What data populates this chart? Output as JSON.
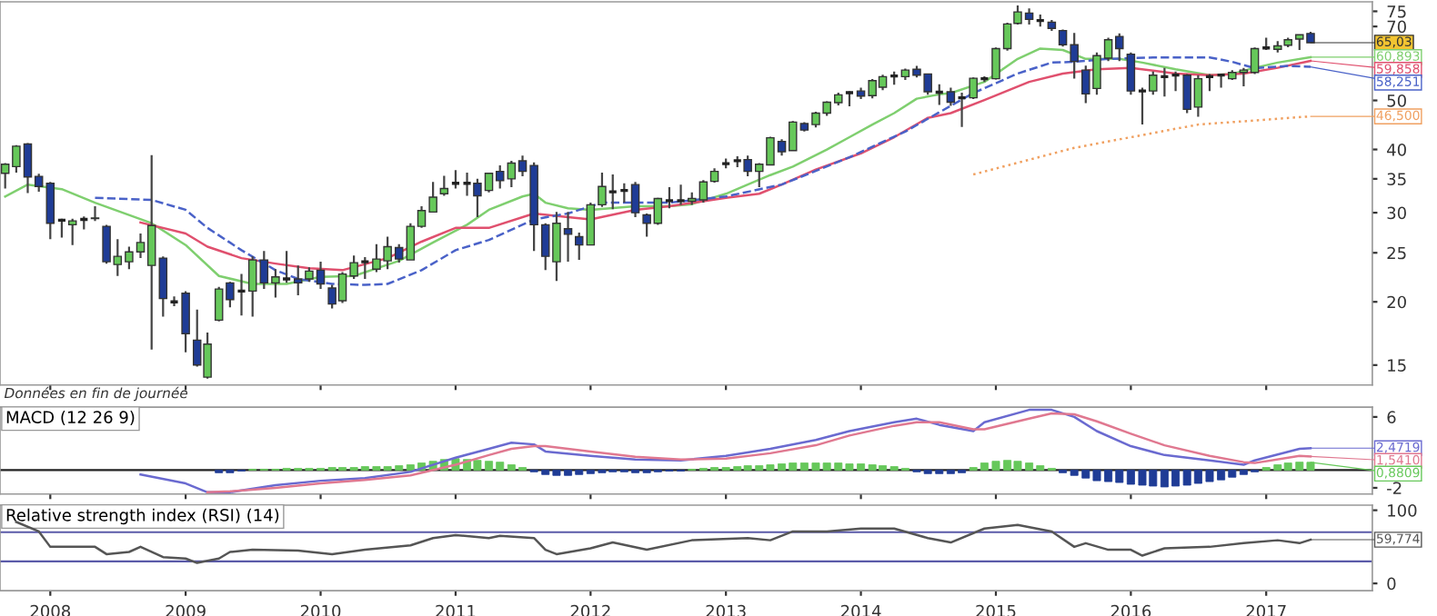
{
  "chart_data": [
    {
      "type": "candlestick",
      "log": true,
      "tick_labels": "y",
      "xlim": [
        "2007-08-18",
        "2017-10-15"
      ],
      "xticks": [
        "2008",
        "2009",
        "2010",
        "2011",
        "2012",
        "2013",
        "2014",
        "2015",
        "2016",
        "2017"
      ],
      "ylim": [
        13.7,
        78.3
      ],
      "yticks": [
        15,
        20,
        25,
        30,
        35,
        40,
        50,
        70,
        75
      ],
      "x": [
        "2007-09",
        "2007-10",
        "2007-11",
        "2007-12",
        "2008-01",
        "2008-02",
        "2008-03",
        "2008-04",
        "2008-05",
        "2008-06",
        "2008-07",
        "2008-08",
        "2008-09",
        "2008-10",
        "2008-11",
        "2008-12",
        "2009-01",
        "2009-02",
        "2009-03",
        "2009-04",
        "2009-05",
        "2009-06",
        "2009-07",
        "2009-08",
        "2009-09",
        "2009-10",
        "2009-11",
        "2009-12",
        "2010-01",
        "2010-02",
        "2010-03",
        "2010-04",
        "2010-05",
        "2010-06",
        "2010-07",
        "2010-08",
        "2010-09",
        "2010-10",
        "2010-11",
        "2010-12",
        "2011-01",
        "2011-02",
        "2011-03",
        "2011-04",
        "2011-05",
        "2011-06",
        "2011-07",
        "2011-08",
        "2011-09",
        "2011-10",
        "2011-11",
        "2011-12",
        "2012-01",
        "2012-02",
        "2012-03",
        "2012-04",
        "2012-05",
        "2012-06",
        "2012-07",
        "2012-08",
        "2012-09",
        "2012-10",
        "2012-11",
        "2012-12",
        "2013-01",
        "2013-02",
        "2013-03",
        "2013-04",
        "2013-05",
        "2013-06",
        "2013-07",
        "2013-08",
        "2013-09",
        "2013-10",
        "2013-11",
        "2013-12",
        "2014-01",
        "2014-02",
        "2014-03",
        "2014-04",
        "2014-05",
        "2014-06",
        "2014-07",
        "2014-08",
        "2014-09",
        "2014-10",
        "2014-11",
        "2014-12",
        "2015-01",
        "2015-02",
        "2015-03",
        "2015-04",
        "2015-05",
        "2015-06",
        "2015-07",
        "2015-08",
        "2015-09",
        "2015-10",
        "2015-11",
        "2015-12",
        "2016-01",
        "2016-02",
        "2016-03",
        "2016-04",
        "2016-05",
        "2016-06",
        "2016-07",
        "2016-08",
        "2016-09",
        "2016-10",
        "2016-11",
        "2016-12",
        "2017-01",
        "2017-02",
        "2017-03",
        "2017-04",
        "2017-05"
      ],
      "ohlc": [
        [
          35.9,
          37.6,
          33.5,
          37.4
        ],
        [
          37.0,
          40.8,
          36.0,
          40.6
        ],
        [
          41.0,
          41.2,
          32.8,
          35.3
        ],
        [
          35.4,
          35.8,
          33.0,
          33.8
        ],
        [
          34.3,
          34.5,
          26.6,
          28.6
        ],
        [
          29.0,
          29.2,
          26.8,
          29.0
        ],
        [
          28.4,
          29.2,
          25.9,
          28.9
        ],
        [
          29.1,
          29.5,
          27.8,
          29.1
        ],
        [
          29.2,
          30.9,
          28.9,
          29.3
        ],
        [
          28.2,
          28.4,
          23.8,
          24.0
        ],
        [
          23.7,
          26.6,
          22.5,
          24.6
        ],
        [
          24.0,
          25.7,
          23.2,
          25.1
        ],
        [
          25.1,
          27.3,
          24.4,
          26.2
        ],
        [
          23.6,
          39.0,
          16.1,
          28.3
        ],
        [
          24.4,
          24.6,
          18.7,
          20.3
        ],
        [
          20.0,
          20.5,
          19.6,
          20.0
        ],
        [
          20.8,
          21.0,
          15.9,
          17.3
        ],
        [
          16.8,
          19.3,
          14.9,
          15.0
        ],
        [
          14.2,
          17.4,
          14.1,
          16.5
        ],
        [
          18.4,
          21.4,
          18.3,
          21.2
        ],
        [
          21.8,
          21.9,
          19.5,
          20.2
        ],
        [
          21.0,
          22.7,
          18.8,
          21.0
        ],
        [
          21.0,
          24.6,
          18.7,
          24.2
        ],
        [
          24.2,
          25.2,
          21.2,
          21.8
        ],
        [
          21.8,
          23.2,
          20.4,
          22.4
        ],
        [
          22.2,
          25.2,
          21.8,
          22.2
        ],
        [
          22.2,
          23.6,
          20.6,
          21.8
        ],
        [
          22.2,
          23.4,
          21.9,
          23.0
        ],
        [
          23.1,
          24.0,
          21.2,
          21.7
        ],
        [
          21.3,
          21.6,
          19.4,
          19.8
        ],
        [
          20.1,
          22.9,
          19.9,
          22.7
        ],
        [
          22.5,
          24.7,
          22.2,
          23.9
        ],
        [
          24.0,
          24.5,
          22.2,
          24.0
        ],
        [
          23.2,
          26.0,
          22.9,
          24.3
        ],
        [
          24.1,
          26.9,
          23.2,
          25.7
        ],
        [
          25.6,
          26.0,
          23.9,
          24.3
        ],
        [
          24.2,
          28.6,
          24.2,
          28.2
        ],
        [
          28.2,
          30.9,
          28.0,
          30.3
        ],
        [
          30.1,
          34.5,
          30.1,
          32.2
        ],
        [
          32.7,
          35.5,
          32.4,
          33.5
        ],
        [
          34.3,
          36.4,
          33.5,
          34.3
        ],
        [
          34.3,
          36.0,
          32.4,
          34.3
        ],
        [
          34.3,
          35.0,
          29.4,
          32.4
        ],
        [
          33.2,
          36.0,
          32.9,
          35.9
        ],
        [
          36.2,
          37.2,
          33.5,
          34.7
        ],
        [
          35.0,
          38.0,
          33.7,
          37.6
        ],
        [
          38.0,
          38.9,
          35.4,
          36.2
        ],
        [
          37.2,
          37.7,
          25.2,
          28.4
        ],
        [
          28.4,
          28.6,
          23.1,
          24.6
        ],
        [
          24.0,
          30.1,
          22.0,
          28.6
        ],
        [
          27.9,
          30.1,
          24.0,
          27.2
        ],
        [
          26.9,
          27.4,
          24.2,
          25.9
        ],
        [
          25.9,
          31.4,
          25.9,
          31.1
        ],
        [
          31.1,
          36.0,
          30.8,
          33.8
        ],
        [
          33.0,
          35.7,
          30.5,
          33.0
        ],
        [
          33.2,
          34.3,
          31.4,
          33.2
        ],
        [
          34.1,
          34.5,
          29.4,
          30.0
        ],
        [
          29.7,
          29.9,
          26.9,
          28.6
        ],
        [
          28.6,
          32.1,
          28.4,
          32.0
        ],
        [
          31.7,
          33.7,
          30.6,
          31.7
        ],
        [
          31.7,
          34.1,
          31.1,
          31.7
        ],
        [
          31.6,
          32.9,
          31.1,
          32.0
        ],
        [
          31.8,
          34.8,
          31.4,
          34.5
        ],
        [
          34.6,
          36.7,
          34.4,
          36.2
        ],
        [
          37.5,
          38.4,
          36.7,
          37.5
        ],
        [
          38.0,
          38.8,
          36.9,
          38.0
        ],
        [
          38.2,
          38.9,
          35.4,
          36.2
        ],
        [
          36.2,
          37.6,
          33.7,
          37.4
        ],
        [
          37.3,
          42.4,
          37.3,
          42.2
        ],
        [
          41.5,
          41.9,
          38.9,
          39.6
        ],
        [
          39.8,
          45.5,
          39.8,
          45.3
        ],
        [
          45.0,
          45.3,
          43.4,
          43.7
        ],
        [
          44.8,
          47.5,
          44.2,
          47.2
        ],
        [
          47.2,
          49.8,
          46.6,
          49.6
        ],
        [
          49.5,
          51.8,
          48.9,
          51.3
        ],
        [
          51.8,
          52.1,
          48.7,
          51.8
        ],
        [
          52.2,
          53.0,
          50.3,
          51.0
        ],
        [
          51.1,
          55.1,
          50.5,
          54.7
        ],
        [
          53.1,
          56.2,
          52.4,
          55.7
        ],
        [
          55.9,
          57.0,
          53.7,
          55.9
        ],
        [
          55.7,
          57.8,
          54.9,
          57.4
        ],
        [
          57.6,
          58.5,
          55.5,
          56.1
        ],
        [
          56.4,
          56.4,
          51.3,
          52.0
        ],
        [
          51.9,
          53.8,
          49.0,
          51.9
        ],
        [
          52.0,
          53.0,
          48.8,
          49.6
        ],
        [
          50.6,
          51.8,
          44.3,
          50.6
        ],
        [
          50.6,
          55.5,
          50.3,
          55.3
        ],
        [
          55.2,
          55.8,
          54.4,
          55.2
        ],
        [
          55.2,
          63.6,
          55.0,
          63.3
        ],
        [
          63.3,
          71.2,
          62.7,
          70.8
        ],
        [
          71.0,
          77.0,
          70.6,
          74.8
        ],
        [
          74.4,
          76.0,
          70.6,
          72.3
        ],
        [
          71.9,
          73.9,
          70.0,
          71.9
        ],
        [
          71.4,
          72.1,
          68.6,
          69.4
        ],
        [
          68.7,
          69.0,
          63.9,
          64.4
        ],
        [
          64.4,
          68.0,
          55.2,
          59.7
        ],
        [
          57.4,
          58.6,
          49.4,
          51.5
        ],
        [
          52.8,
          62.2,
          51.3,
          61.3
        ],
        [
          60.6,
          66.5,
          59.8,
          65.9
        ],
        [
          66.9,
          67.8,
          59.8,
          63.3
        ],
        [
          61.7,
          62.2,
          51.3,
          52.2
        ],
        [
          52.2,
          53.0,
          44.8,
          52.2
        ],
        [
          52.2,
          57.0,
          51.3,
          56.1
        ],
        [
          55.7,
          58.0,
          50.9,
          55.7
        ],
        [
          56.1,
          57.0,
          52.2,
          56.1
        ],
        [
          56.1,
          56.4,
          47.2,
          48.0
        ],
        [
          48.5,
          56.1,
          46.4,
          55.2
        ],
        [
          55.7,
          56.4,
          52.2,
          55.7
        ],
        [
          56.1,
          56.4,
          53.0,
          56.1
        ],
        [
          55.2,
          57.4,
          54.9,
          56.8
        ],
        [
          56.8,
          58.0,
          53.3,
          57.4
        ],
        [
          56.8,
          63.6,
          56.4,
          63.3
        ],
        [
          63.5,
          66.5,
          62.9,
          63.5
        ],
        [
          63.1,
          65.5,
          62.2,
          64.1
        ],
        [
          64.3,
          66.5,
          63.7,
          65.9
        ],
        [
          66.1,
          67.4,
          62.9,
          67.4
        ],
        [
          67.8,
          68.3,
          65.0,
          65.03
        ]
      ],
      "series": [
        {
          "type": "line",
          "color": "#7fcf6f",
          "line_style": "solid",
          "x": [
            "2007-09",
            "2007-11",
            "2008-02",
            "2008-05",
            "2008-10",
            "2009-01",
            "2009-04",
            "2009-07",
            "2009-10",
            "2010-01",
            "2010-04",
            "2010-08",
            "2010-11",
            "2011-02",
            "2011-04",
            "2011-07",
            "2011-08",
            "2011-09",
            "2011-11",
            "2012-01",
            "2012-05",
            "2012-08",
            "2012-10",
            "2013-01",
            "2013-03",
            "2013-05",
            "2013-07",
            "2013-10",
            "2013-12",
            "2014-02",
            "2014-04",
            "2014-06",
            "2014-08",
            "2014-09",
            "2014-12",
            "2015-03",
            "2015-05",
            "2015-07",
            "2015-09",
            "2015-12",
            "2016-02",
            "2016-05",
            "2016-08",
            "2016-10",
            "2016-12",
            "2017-02",
            "2017-05"
          ],
          "values": [
            32.3,
            34.1,
            33.4,
            31.4,
            28.6,
            25.9,
            22.5,
            21.7,
            21.7,
            22.4,
            22.5,
            24.1,
            26.2,
            28.4,
            30.4,
            32.3,
            32.7,
            31.4,
            30.6,
            30.4,
            30.9,
            30.9,
            31.2,
            32.7,
            34.1,
            35.6,
            37.0,
            40.0,
            42.3,
            44.8,
            47.2,
            50.4,
            51.4,
            51.7,
            54.4,
            60.4,
            63.3,
            62.9,
            60.4,
            60.4,
            59.4,
            57.6,
            56.1,
            56.4,
            58.0,
            59.4,
            60.893
          ]
        },
        {
          "type": "line",
          "color": "#e0506e",
          "line_style": "solid",
          "x": [
            "2008-09",
            "2009-01",
            "2009-03",
            "2009-06",
            "2009-09",
            "2009-12",
            "2010-03",
            "2010-07",
            "2010-10",
            "2011-01",
            "2011-04",
            "2011-08",
            "2011-11",
            "2012-01",
            "2012-05",
            "2012-08",
            "2013-01",
            "2013-04",
            "2013-06",
            "2013-09",
            "2014-01",
            "2014-04",
            "2014-07",
            "2014-09",
            "2014-12",
            "2015-04",
            "2015-07",
            "2015-10",
            "2016-01",
            "2016-05",
            "2016-08",
            "2016-11",
            "2017-02",
            "2017-05"
          ],
          "values": [
            28.7,
            27.3,
            25.7,
            24.4,
            23.8,
            23.3,
            23.1,
            24.4,
            26.3,
            28.0,
            28.0,
            29.9,
            29.4,
            29.1,
            30.4,
            30.9,
            32.1,
            32.7,
            34.1,
            36.5,
            39.3,
            42.3,
            46.2,
            47.2,
            50.1,
            54.4,
            56.5,
            57.6,
            58.0,
            56.5,
            56.1,
            56.5,
            58.0,
            59.858
          ]
        },
        {
          "type": "line",
          "color": "#4a62c8",
          "line_style": "dashed",
          "x": [
            "2008-05",
            "2008-10",
            "2009-01",
            "2009-03",
            "2009-06",
            "2009-09",
            "2009-11",
            "2010-02",
            "2010-05",
            "2010-07",
            "2010-10",
            "2011-01",
            "2011-04",
            "2011-08",
            "2011-11",
            "2012-02",
            "2012-08",
            "2013-01",
            "2013-06",
            "2013-12",
            "2014-05",
            "2014-11",
            "2015-03",
            "2015-06",
            "2015-08",
            "2015-11",
            "2016-03",
            "2016-08",
            "2016-10",
            "2016-12",
            "2017-03",
            "2017-05"
          ],
          "values": [
            32.1,
            31.8,
            30.4,
            28.0,
            25.3,
            23.1,
            22.2,
            21.7,
            21.6,
            21.7,
            23.1,
            25.3,
            26.5,
            29.1,
            29.9,
            31.4,
            31.4,
            32.3,
            34.1,
            38.6,
            43.4,
            51.7,
            56.5,
            59.4,
            59.6,
            60.4,
            60.8,
            60.8,
            59.6,
            57.9,
            58.5,
            58.251
          ]
        },
        {
          "type": "line",
          "color": "#f0a060",
          "line_style": "dotted",
          "x": [
            "2014-11",
            "2015-08",
            "2016-07",
            "2017-05"
          ],
          "values": [
            35.7,
            40.3,
            44.8,
            46.5
          ]
        }
      ],
      "annotations": [
        {
          "text": "65,03",
          "x": "2017-05",
          "y": 65.03
        },
        {
          "text": "60,893",
          "x": "2017-05",
          "y": 60.893
        },
        {
          "text": "59,858",
          "x": "2017-05",
          "y": 59.858
        },
        {
          "text": "58,251",
          "x": "2017-05",
          "y": 58.251
        },
        {
          "text": "46,500",
          "x": "2017-05",
          "y": 46.5
        },
        "Données en fin de journée"
      ]
    },
    {
      "type": "bar",
      "title": "MACD (12 26 9)",
      "tick_labels": "y",
      "xlim": [
        "2007-08-18",
        "2017-10-15"
      ],
      "xticks": [
        "2008",
        "2009",
        "2010",
        "2011",
        "2012",
        "2013",
        "2014",
        "2015",
        "2016",
        "2017"
      ],
      "ylim": [
        -2.7,
        7.1
      ],
      "yticks": [
        -2,
        6
      ],
      "x": [
        "2009-04",
        "2009-05",
        "2009-06",
        "2009-07",
        "2009-08",
        "2009-09",
        "2009-10",
        "2009-11",
        "2009-12",
        "2010-01",
        "2010-02",
        "2010-03",
        "2010-04",
        "2010-05",
        "2010-06",
        "2010-07",
        "2010-08",
        "2010-09",
        "2010-10",
        "2010-11",
        "2010-12",
        "2011-01",
        "2011-02",
        "2011-03",
        "2011-04",
        "2011-05",
        "2011-06",
        "2011-07",
        "2011-08",
        "2011-09",
        "2011-10",
        "2011-11",
        "2011-12",
        "2012-01",
        "2012-02",
        "2012-03",
        "2012-04",
        "2012-05",
        "2012-06",
        "2012-07",
        "2012-08",
        "2012-09",
        "2012-10",
        "2012-11",
        "2012-12",
        "2013-01",
        "2013-02",
        "2013-03",
        "2013-04",
        "2013-05",
        "2013-06",
        "2013-07",
        "2013-08",
        "2013-09",
        "2013-10",
        "2013-11",
        "2013-12",
        "2014-01",
        "2014-02",
        "2014-03",
        "2014-04",
        "2014-05",
        "2014-06",
        "2014-07",
        "2014-08",
        "2014-09",
        "2014-10",
        "2014-11",
        "2014-12",
        "2015-01",
        "2015-02",
        "2015-03",
        "2015-04",
        "2015-05",
        "2015-06",
        "2015-07",
        "2015-08",
        "2015-09",
        "2015-10",
        "2015-11",
        "2015-12",
        "2016-01",
        "2016-02",
        "2016-03",
        "2016-04",
        "2016-05",
        "2016-06",
        "2016-07",
        "2016-08",
        "2016-09",
        "2016-10",
        "2016-11",
        "2016-12",
        "2017-01",
        "2017-02",
        "2017-03",
        "2017-04",
        "2017-05"
      ],
      "series": [
        {
          "type": "bar",
          "color": "#66c85a",
          "values": [
            null,
            null,
            null,
            0.1,
            0.1,
            0.1,
            0.2,
            0.2,
            0.2,
            0.2,
            0.3,
            0.3,
            0.3,
            0.4,
            0.4,
            0.4,
            0.5,
            0.6,
            0.8,
            1.0,
            1.2,
            1.3,
            1.2,
            1.1,
            1.0,
            0.9,
            0.6,
            0.3,
            null,
            null,
            null,
            null,
            null,
            null,
            null,
            null,
            null,
            null,
            null,
            null,
            null,
            null,
            0.1,
            0.2,
            0.3,
            0.3,
            0.4,
            0.5,
            0.5,
            0.6,
            0.7,
            0.8,
            0.8,
            0.8,
            0.8,
            0.8,
            0.7,
            0.7,
            0.6,
            0.5,
            0.4,
            0.2,
            null,
            null,
            null,
            null,
            null,
            0.3,
            0.8,
            1.0,
            1.1,
            1.0,
            0.8,
            0.5,
            0.2,
            null,
            null,
            null,
            null,
            null,
            null,
            null,
            null,
            null,
            null,
            null,
            null,
            null,
            null,
            null,
            null,
            null,
            null,
            0.3,
            0.6,
            0.8,
            0.9,
            0.8809
          ]
        },
        {
          "type": "bar",
          "color": "#1f3c96",
          "values": [
            -0.3,
            -0.3,
            -0.1,
            null,
            null,
            null,
            null,
            null,
            null,
            null,
            null,
            null,
            null,
            null,
            null,
            null,
            null,
            null,
            null,
            null,
            null,
            null,
            null,
            null,
            null,
            null,
            null,
            null,
            -0.2,
            -0.5,
            -0.6,
            -0.6,
            -0.5,
            -0.4,
            -0.3,
            -0.2,
            -0.2,
            -0.3,
            -0.3,
            -0.2,
            -0.1,
            -0.1,
            null,
            null,
            null,
            null,
            null,
            null,
            null,
            null,
            null,
            null,
            null,
            null,
            null,
            null,
            null,
            null,
            null,
            null,
            null,
            null,
            -0.2,
            -0.4,
            -0.4,
            -0.4,
            -0.3,
            null,
            null,
            null,
            null,
            null,
            null,
            null,
            null,
            -0.3,
            -0.6,
            -0.9,
            -1.2,
            -1.3,
            -1.4,
            -1.6,
            -1.7,
            -1.8,
            -1.9,
            -1.8,
            -1.7,
            -1.5,
            -1.3,
            -1.1,
            -0.8,
            -0.5,
            -0.2,
            null,
            null,
            null,
            null,
            null
          ]
        },
        {
          "type": "line",
          "color": "#6a6ad0",
          "line_style": "solid",
          "x": [
            "2008-09",
            "2009-01",
            "2009-03",
            "2009-05",
            "2009-09",
            "2010-01",
            "2010-05",
            "2010-09",
            "2011-01",
            "2011-04",
            "2011-06",
            "2011-08",
            "2011-09",
            "2012-01",
            "2012-05",
            "2012-09",
            "2013-01",
            "2013-05",
            "2013-09",
            "2013-12",
            "2014-04",
            "2014-06",
            "2014-08",
            "2014-11",
            "2014-12",
            "2015-04",
            "2015-06",
            "2015-08",
            "2015-10",
            "2016-01",
            "2016-04",
            "2016-08",
            "2016-11",
            "2016-12",
            "2017-04",
            "2017-05"
          ],
          "values": [
            -0.5,
            -1.5,
            -2.5,
            -2.5,
            -1.7,
            -1.2,
            -0.9,
            -0.2,
            1.4,
            2.4,
            3.1,
            2.9,
            2.1,
            1.6,
            1.2,
            1.1,
            1.6,
            2.4,
            3.4,
            4.4,
            5.4,
            5.8,
            5.1,
            4.4,
            5.4,
            6.8,
            6.8,
            6.0,
            4.4,
            2.7,
            1.7,
            1.1,
            0.6,
            1.1,
            2.4,
            2.4719
          ]
        },
        {
          "type": "line",
          "color": "#e07890",
          "line_style": "solid",
          "x": [
            "2009-03",
            "2009-05",
            "2009-09",
            "2010-01",
            "2010-05",
            "2010-09",
            "2011-01",
            "2011-04",
            "2011-06",
            "2011-08",
            "2011-09",
            "2012-01",
            "2012-05",
            "2012-09",
            "2013-01",
            "2013-05",
            "2013-09",
            "2013-12",
            "2014-04",
            "2014-06",
            "2014-08",
            "2014-11",
            "2014-12",
            "2015-04",
            "2015-06",
            "2015-08",
            "2015-10",
            "2016-01",
            "2016-04",
            "2016-08",
            "2016-11",
            "2016-12",
            "2017-04",
            "2017-05"
          ],
          "values": [
            -2.5,
            -2.4,
            -2.0,
            -1.5,
            -1.1,
            -0.6,
            0.6,
            1.7,
            2.4,
            2.7,
            2.7,
            2.1,
            1.5,
            1.2,
            1.3,
            1.9,
            2.8,
            3.9,
            5.0,
            5.4,
            5.4,
            4.6,
            4.6,
            5.8,
            6.4,
            6.3,
            5.5,
            4.1,
            2.8,
            1.6,
            0.9,
            0.8,
            1.6,
            1.541
          ]
        }
      ],
      "ref_lines": [
        {
          "axis": "y",
          "value": 0,
          "color": "#222222",
          "line_style": "solid"
        }
      ],
      "annotations": [
        {
          "text": "2,4719",
          "x": "2017-05",
          "y": 2.4719
        },
        {
          "text": "1,5410",
          "x": "2017-05",
          "y": 1.541
        },
        {
          "text": "0,8809",
          "x": "2017-05",
          "y": 0.8809
        }
      ]
    },
    {
      "type": "line",
      "title": "Relative strength index (RSI) (14)",
      "xlim": [
        "2007-08-18",
        "2017-10-15"
      ],
      "xticks": [
        "2008",
        "2009",
        "2010",
        "2011",
        "2012",
        "2013",
        "2014",
        "2015",
        "2016",
        "2017"
      ],
      "ylim": [
        -10,
        107
      ],
      "yticks": [
        0,
        100
      ],
      "series": [
        {
          "type": "line",
          "color": "#555555",
          "line_style": "solid",
          "x": [
            "2007-10",
            "2007-12",
            "2008-01",
            "2008-05",
            "2008-06",
            "2008-08",
            "2008-09",
            "2008-11",
            "2009-01",
            "2009-02",
            "2009-04",
            "2009-05",
            "2009-07",
            "2009-11",
            "2010-02",
            "2010-05",
            "2010-09",
            "2010-11",
            "2011-01",
            "2011-04",
            "2011-05",
            "2011-08",
            "2011-09",
            "2011-10",
            "2012-01",
            "2012-03",
            "2012-06",
            "2012-10",
            "2013-03",
            "2013-05",
            "2013-07",
            "2013-10",
            "2014-01",
            "2014-04",
            "2014-07",
            "2014-09",
            "2014-12",
            "2015-03",
            "2015-06",
            "2015-08",
            "2015-09",
            "2015-11",
            "2016-01",
            "2016-02",
            "2016-04",
            "2016-08",
            "2016-11",
            "2017-02",
            "2017-04",
            "2017-05"
          ],
          "values": [
            84,
            71,
            50,
            50,
            40,
            43,
            50,
            36,
            34,
            28,
            34,
            43,
            46,
            45,
            40,
            46,
            52,
            62,
            66,
            62,
            65,
            62,
            46,
            40,
            48,
            56,
            46,
            59,
            62,
            59,
            71,
            71,
            75,
            75,
            62,
            56,
            75,
            80,
            71,
            50,
            55,
            46,
            46,
            38,
            48,
            50,
            55,
            59,
            55,
            59.774
          ]
        }
      ],
      "ref_lines": [
        {
          "axis": "y",
          "value": 70,
          "color": "#5a5aa8",
          "line_style": "solid"
        },
        {
          "axis": "y",
          "value": 30,
          "color": "#5a5aa8",
          "line_style": "solid"
        }
      ],
      "annotations": [
        {
          "text": "59,774",
          "x": "2017-05",
          "y": 59.774
        }
      ]
    }
  ]
}
